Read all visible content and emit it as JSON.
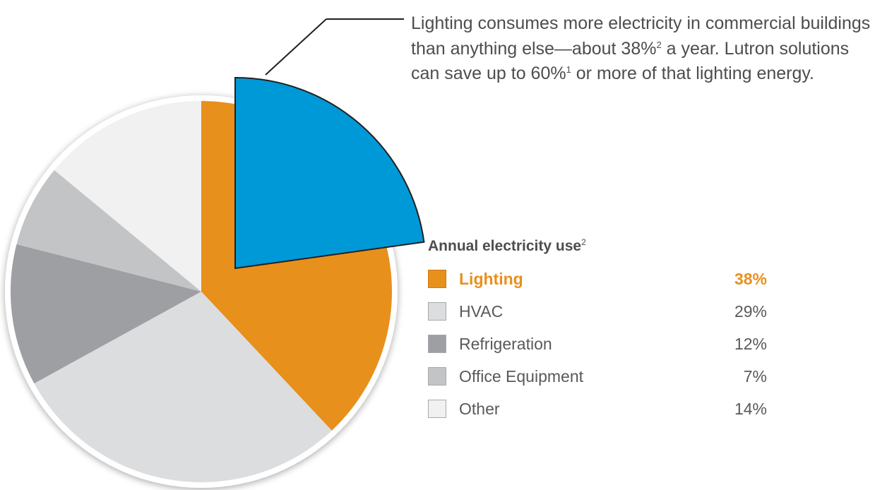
{
  "callout": {
    "part1": "Lighting consumes more electricity in commercial buildings than anything else—about 38%",
    "ref1": "2",
    "part2": " a year. Lutron solutions can save up to 60%",
    "ref2": "1",
    "part3": " or more of that lighting energy."
  },
  "chart_data": {
    "type": "pie",
    "title": "Annual electricity use",
    "title_ref": "2",
    "unit": "%",
    "exploded_wedge": {
      "of": "Lighting",
      "share_of_slice": 0.6,
      "color": "#0099d8"
    },
    "slices": [
      {
        "name": "Lighting",
        "value": 38,
        "color": "#e8901c",
        "highlight": true
      },
      {
        "name": "HVAC",
        "value": 29,
        "color": "#dcdddf",
        "highlight": false
      },
      {
        "name": "Refrigeration",
        "value": 12,
        "color": "#9d9fa2",
        "highlight": false
      },
      {
        "name": "Office Equipment",
        "value": 7,
        "color": "#c3c4c6",
        "highlight": false
      },
      {
        "name": "Other",
        "value": 14,
        "color": "#f1f1f2",
        "highlight": false
      }
    ]
  }
}
